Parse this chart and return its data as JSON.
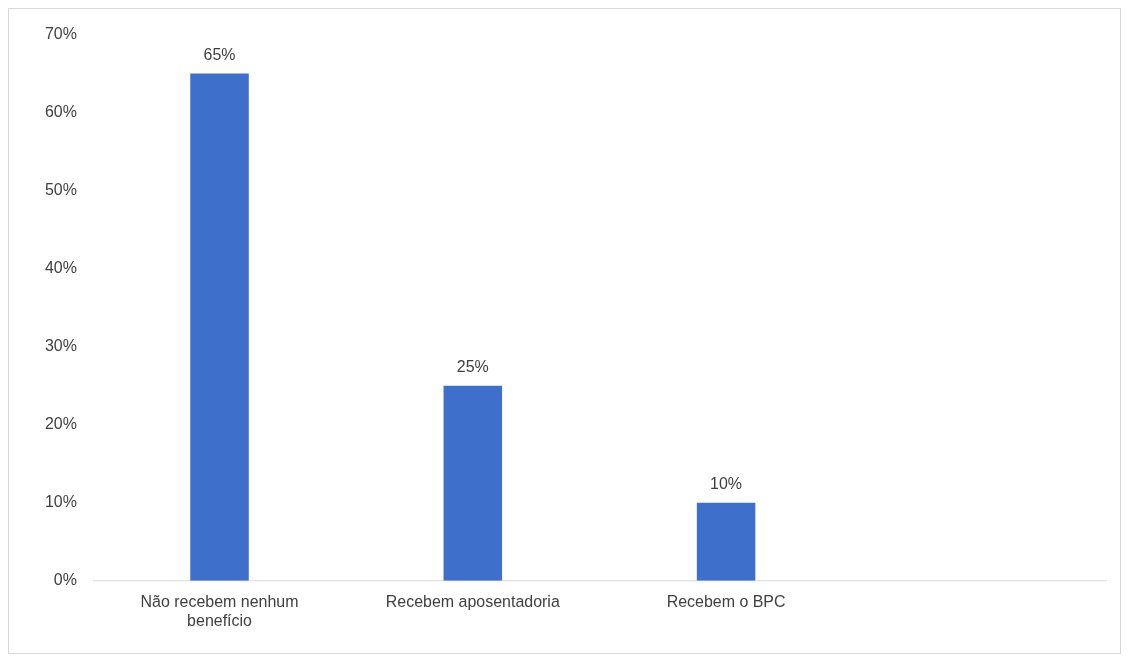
{
  "chart_data": {
    "type": "bar",
    "categories": [
      "Não recebem nenhum benefício",
      "Recebem aposentadoria",
      "Recebem o BPC",
      null
    ],
    "values": [
      65,
      25,
      10,
      null
    ],
    "color": "#3d6fcb",
    "value_labels": [
      "65%",
      "25%",
      "10%",
      null
    ],
    "ylim": [
      0,
      70
    ],
    "yticks": [
      {
        "value": 0,
        "label": "0%"
      },
      {
        "value": 10,
        "label": "10%"
      },
      {
        "value": 20,
        "label": "20%"
      },
      {
        "value": 30,
        "label": "30%"
      },
      {
        "value": 40,
        "label": "40%"
      },
      {
        "value": 50,
        "label": "50%"
      },
      {
        "value": 60,
        "label": "60%"
      },
      {
        "value": 70,
        "label": "70%"
      }
    ],
    "grid": false,
    "legend": false
  }
}
